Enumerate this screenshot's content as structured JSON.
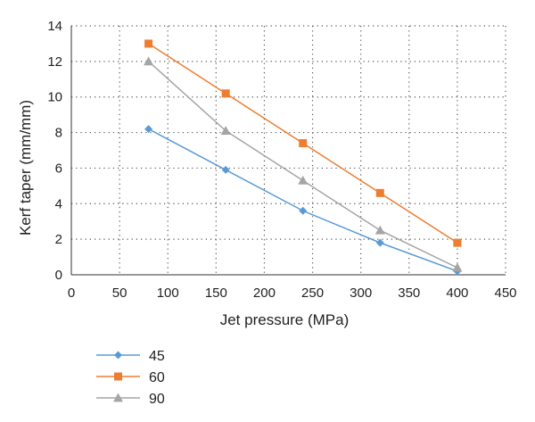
{
  "chart_data": {
    "type": "line",
    "xlabel": "Jet pressure (MPa)",
    "ylabel": "Kerf taper (mm/mm)",
    "xlim": [
      0,
      450
    ],
    "ylim": [
      0,
      14
    ],
    "xticks": [
      0,
      50,
      100,
      150,
      200,
      250,
      300,
      350,
      400,
      450
    ],
    "yticks": [
      0,
      2,
      4,
      6,
      8,
      10,
      12,
      14
    ],
    "grid": "dotted",
    "legend_position": "bottom-left",
    "x": [
      80,
      160,
      240,
      320,
      400
    ],
    "series": [
      {
        "name": "45",
        "marker": "diamond",
        "color": "#5B9BD5",
        "values": [
          8.2,
          5.9,
          3.6,
          1.8,
          0.2
        ]
      },
      {
        "name": "60",
        "marker": "square",
        "color": "#ED7D31",
        "values": [
          13.0,
          10.2,
          7.4,
          4.6,
          1.8
        ]
      },
      {
        "name": "90",
        "marker": "triangle",
        "color": "#A5A5A5",
        "values": [
          12.0,
          8.1,
          5.3,
          2.5,
          0.4
        ]
      }
    ]
  }
}
